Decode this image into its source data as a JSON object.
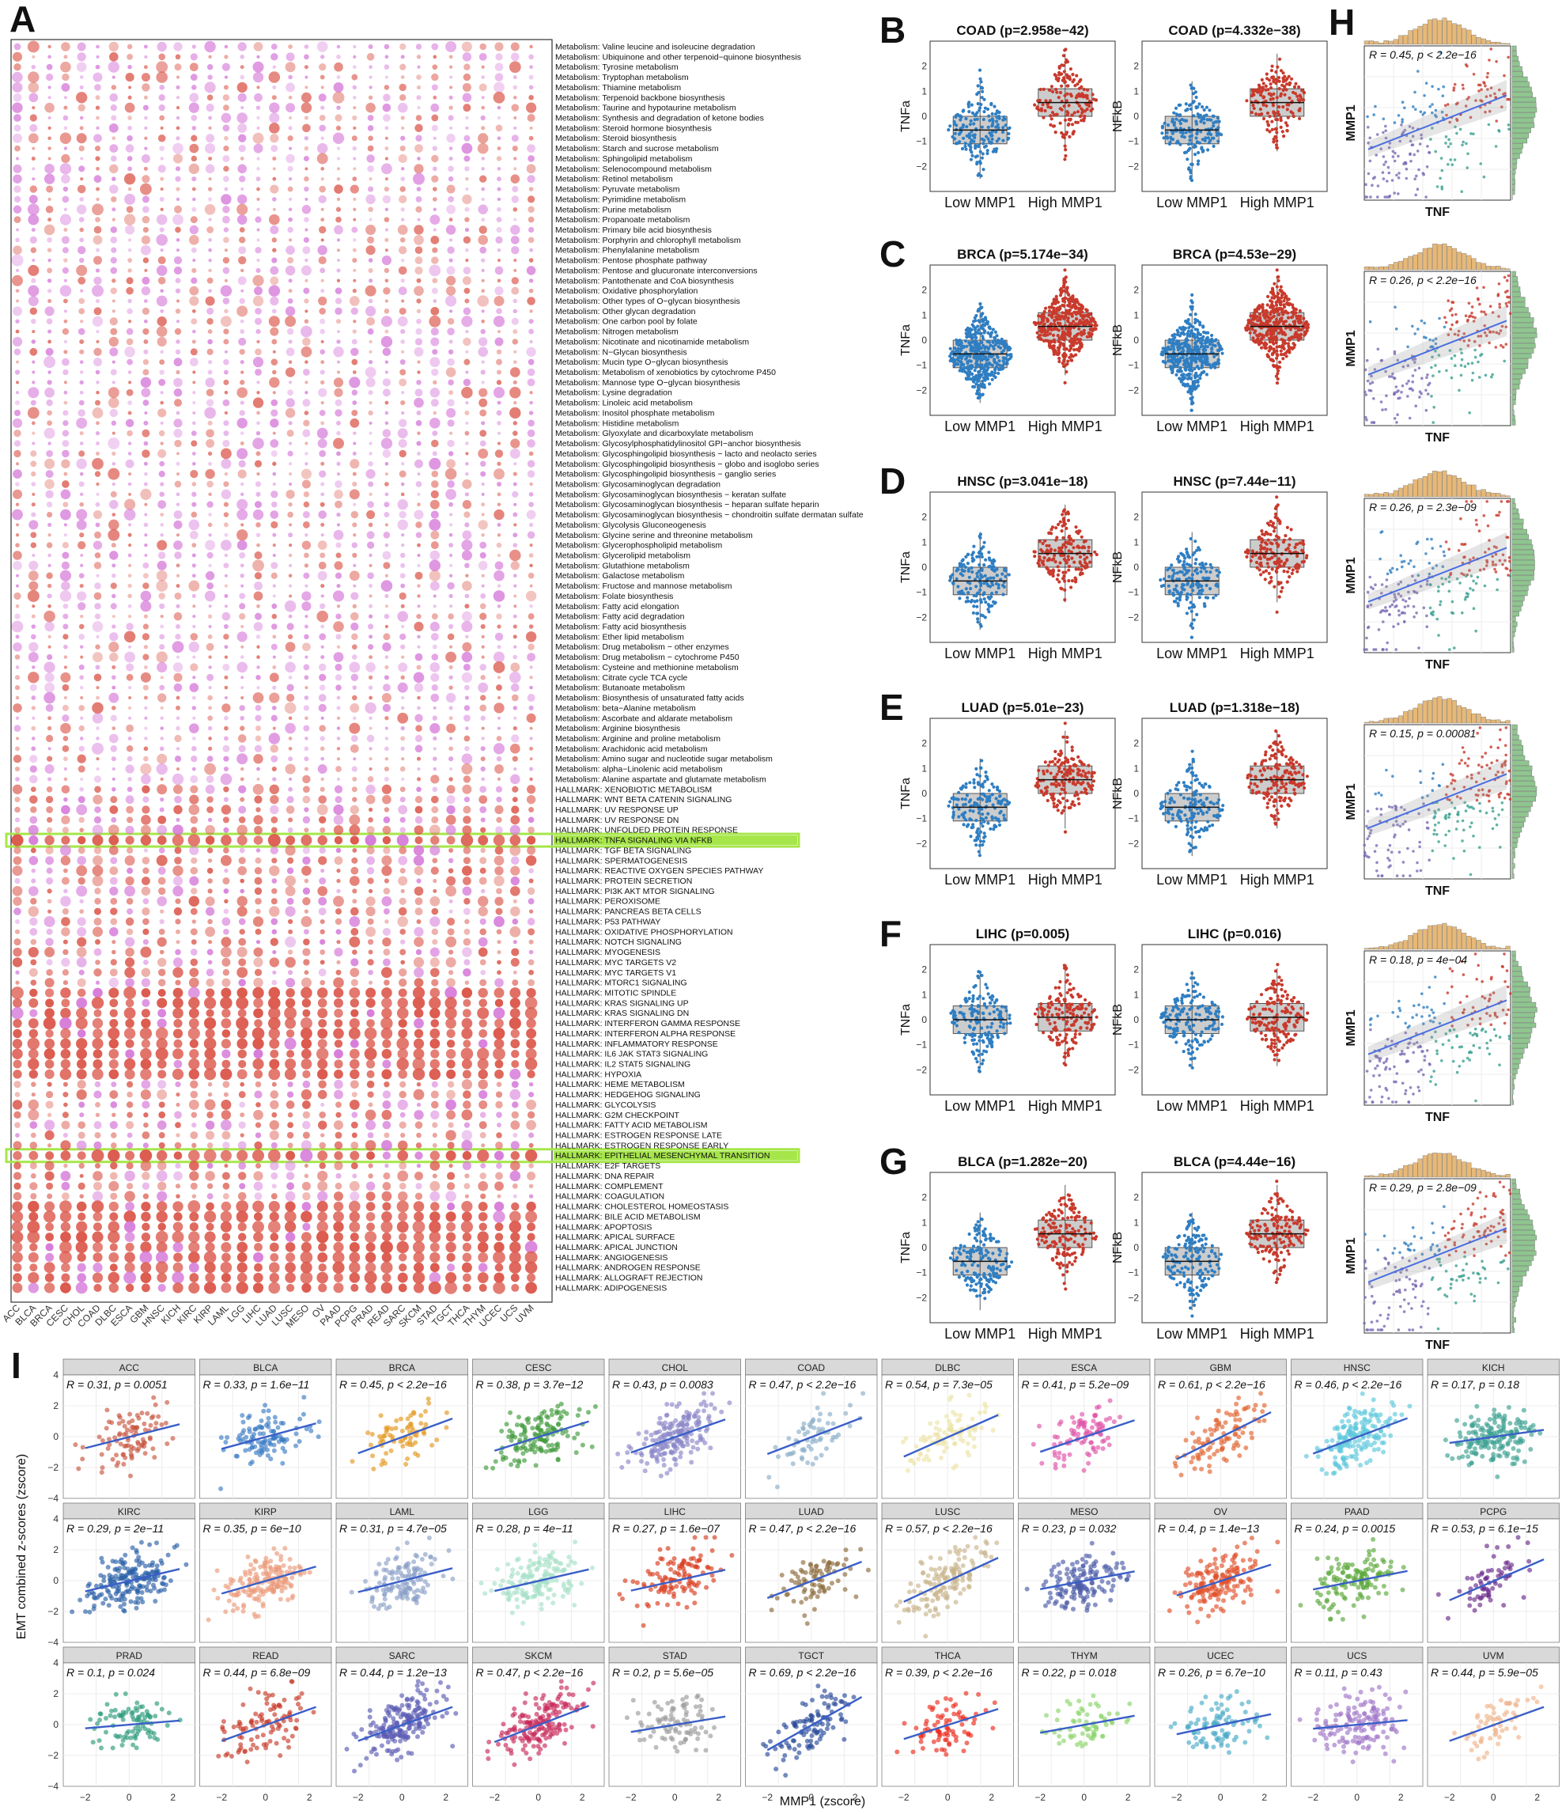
{
  "panel_letters": {
    "A": "A",
    "B": "B",
    "C": "C",
    "D": "D",
    "E": "E",
    "F": "F",
    "G": "G",
    "H": "H",
    "I": "I"
  },
  "panelA": {
    "cancers": [
      "ACC",
      "BLCA",
      "BRCA",
      "CESC",
      "CHOL",
      "COAD",
      "DLBC",
      "ESCA",
      "GBM",
      "HNSC",
      "KICH",
      "KIRC",
      "KIRP",
      "LAML",
      "LGG",
      "LIHC",
      "LUAD",
      "LUSC",
      "MESO",
      "OV",
      "PAAD",
      "PCPG",
      "PRAD",
      "READ",
      "SARC",
      "SKCM",
      "STAD",
      "TGCT",
      "THCA",
      "THYM",
      "UCEC",
      "UCS",
      "UVM"
    ],
    "pathways": [
      "Metabolism: Valine leucine and isoleucine degradation",
      "Metabolism: Ubiquinone and other terpenoid−quinone biosynthesis",
      "Metabolism: Tyrosine metabolism",
      "Metabolism: Tryptophan metabolism",
      "Metabolism: Thiamine metabolism",
      "Metabolism: Terpenoid backbone biosynthesis",
      "Metabolism: Taurine and hypotaurine metabolism",
      "Metabolism: Synthesis and degradation of ketone bodies",
      "Metabolism: Steroid hormone biosynthesis",
      "Metabolism: Steroid biosynthesis",
      "Metabolism: Starch and sucrose metabolism",
      "Metabolism: Sphingolipid metabolism",
      "Metabolism: Selenocompound metabolism",
      "Metabolism: Retinol metabolism",
      "Metabolism: Pyruvate metabolism",
      "Metabolism: Pyrimidine metabolism",
      "Metabolism: Purine metabolism",
      "Metabolism: Propanoate metabolism",
      "Metabolism: Primary bile acid biosynthesis",
      "Metabolism: Porphyrin and chlorophyll metabolism",
      "Metabolism: Phenylalanine metabolism",
      "Metabolism: Pentose phosphate pathway",
      "Metabolism: Pentose and glucuronate interconversions",
      "Metabolism: Pantothenate and CoA biosynthesis",
      "Metabolism: Oxidative phosphorylation",
      "Metabolism: Other types of O−glycan biosynthesis",
      "Metabolism: Other glycan degradation",
      "Metabolism: One carbon pool by folate",
      "Metabolism: Nitrogen metabolism",
      "Metabolism: Nicotinate and nicotinamide metabolism",
      "Metabolism: N−Glycan biosynthesis",
      "Metabolism: Mucin type O−glycan biosynthesis",
      "Metabolism: Metabolism of xenobiotics by cytochrome P450",
      "Metabolism: Mannose type O−glycan biosynthesis",
      "Metabolism: Lysine degradation",
      "Metabolism: Linoleic acid metabolism",
      "Metabolism: Inositol phosphate metabolism",
      "Metabolism: Histidine metabolism",
      "Metabolism: Glyoxylate and dicarboxylate metabolism",
      "Metabolism: Glycosylphosphatidylinositol GPI−anchor biosynthesis",
      "Metabolism: Glycosphingolipid biosynthesis − lacto and neolacto series",
      "Metabolism: Glycosphingolipid biosynthesis − globo and isoglobo series",
      "Metabolism: Glycosphingolipid biosynthesis − ganglio series",
      "Metabolism: Glycosaminoglycan degradation",
      "Metabolism: Glycosaminoglycan biosynthesis − keratan sulfate",
      "Metabolism: Glycosaminoglycan biosynthesis − heparan sulfate heparin",
      "Metabolism: Glycosaminoglycan biosynthesis − chondroitin sulfate dermatan sulfate",
      "Metabolism: Glycolysis Gluconeogenesis",
      "Metabolism: Glycine serine and threonine metabolism",
      "Metabolism: Glycerophospholipid metabolism",
      "Metabolism: Glycerolipid metabolism",
      "Metabolism: Glutathione metabolism",
      "Metabolism: Galactose metabolism",
      "Metabolism: Fructose and mannose metabolism",
      "Metabolism: Folate biosynthesis",
      "Metabolism: Fatty acid elongation",
      "Metabolism: Fatty acid degradation",
      "Metabolism: Fatty acid biosynthesis",
      "Metabolism: Ether lipid metabolism",
      "Metabolism: Drug metabolism − other enzymes",
      "Metabolism: Drug metabolism − cytochrome P450",
      "Metabolism: Cysteine and methionine metabolism",
      "Metabolism: Citrate cycle TCA cycle",
      "Metabolism: Butanoate metabolism",
      "Metabolism: Biosynthesis of unsaturated fatty acids",
      "Metabolism: beta−Alanine metabolism",
      "Metabolism: Ascorbate and aldarate metabolism",
      "Metabolism: Arginine biosynthesis",
      "Metabolism: Arginine and proline metabolism",
      "Metabolism: Arachidonic acid metabolism",
      "Metabolism: Amino sugar and nucleotide sugar metabolism",
      "Metabolism: alpha−Linolenic acid metabolism",
      "Metabolism: Alanine aspartate and glutamate metabolism",
      "HALLMARK: XENOBIOTIC METABOLISM",
      "HALLMARK: WNT BETA CATENIN SIGNALING",
      "HALLMARK: UV RESPONSE UP",
      "HALLMARK: UV RESPONSE DN",
      "HALLMARK: UNFOLDED PROTEIN RESPONSE",
      "HALLMARK: TNFA SIGNALING VIA NFKB",
      "HALLMARK: TGF BETA SIGNALING",
      "HALLMARK: SPERMATOGENESIS",
      "HALLMARK: REACTIVE OXYGEN SPECIES PATHWAY",
      "HALLMARK: PROTEIN SECRETION",
      "HALLMARK: PI3K AKT MTOR SIGNALING",
      "HALLMARK: PEROXISOME",
      "HALLMARK: PANCREAS BETA CELLS",
      "HALLMARK: P53 PATHWAY",
      "HALLMARK: OXIDATIVE PHOSPHORYLATION",
      "HALLMARK: NOTCH SIGNALING",
      "HALLMARK: MYOGENESIS",
      "HALLMARK: MYC TARGETS V2",
      "HALLMARK: MYC TARGETS V1",
      "HALLMARK: MTORC1 SIGNALING",
      "HALLMARK: MITOTIC SPINDLE",
      "HALLMARK: KRAS SIGNALING UP",
      "HALLMARK: KRAS SIGNALING DN",
      "HALLMARK: INTERFERON GAMMA RESPONSE",
      "HALLMARK: INTERFERON ALPHA RESPONSE",
      "HALLMARK: INFLAMMATORY RESPONSE",
      "HALLMARK: IL6 JAK STAT3 SIGNALING",
      "HALLMARK: IL2 STAT5 SIGNALING",
      "HALLMARK: HYPOXIA",
      "HALLMARK: HEME METABOLISM",
      "HALLMARK: HEDGEHOG SIGNALING",
      "HALLMARK: GLYCOLYSIS",
      "HALLMARK: G2M CHECKPOINT",
      "HALLMARK: FATTY ACID METABOLISM",
      "HALLMARK: ESTROGEN RESPONSE LATE",
      "HALLMARK: ESTROGEN RESPONSE EARLY",
      "HALLMARK: EPITHELIAL MESENCHYMAL TRANSITION",
      "HALLMARK: E2F TARGETS",
      "HALLMARK: DNA REPAIR",
      "HALLMARK: COMPLEMENT",
      "HALLMARK: COAGULATION",
      "HALLMARK: CHOLESTEROL HOMEOSTASIS",
      "HALLMARK: BILE ACID METABOLISM",
      "HALLMARK: APOPTOSIS",
      "HALLMARK: APICAL SURFACE",
      "HALLMARK: APICAL JUNCTION",
      "HALLMARK: ANGIOGENESIS",
      "HALLMARK: ANDROGEN RESPONSE",
      "HALLMARK: ALLOGRAFT REJECTION",
      "HALLMARK: ADIPOGENESIS"
    ],
    "highlighted": [
      "HALLMARK: TNFA SIGNALING VIA NFKB",
      "HALLMARK: EPITHELIAL MESENCHYMAL TRANSITION"
    ],
    "colors": {
      "up": "#dc5a4e",
      "down": "#d67ad9",
      "highlight": "#a6e64a"
    }
  },
  "boxplots": {
    "categories": [
      "Low MMP1",
      "High MMP1"
    ],
    "colors": {
      "low": "#2f7ec2",
      "high": "#c83a2c"
    },
    "rows": [
      {
        "letter": "B",
        "left": {
          "title": "COAD (p=2.958e−42)",
          "ylabel": "TNFa"
        },
        "right": {
          "title": "COAD (p=4.332e−38)",
          "ylabel": "NFkB"
        }
      },
      {
        "letter": "C",
        "left": {
          "title": "BRCA (p=5.174e−34)",
          "ylabel": "TNFa"
        },
        "right": {
          "title": "BRCA (p=4.53e−29)",
          "ylabel": "NFkB"
        }
      },
      {
        "letter": "D",
        "left": {
          "title": "HNSC (p=3.041e−18)",
          "ylabel": "TNFa"
        },
        "right": {
          "title": "HNSC (p=7.44e−11)",
          "ylabel": "NFkB"
        }
      },
      {
        "letter": "E",
        "left": {
          "title": "LUAD (p=5.01e−23)",
          "ylabel": "TNFa"
        },
        "right": {
          "title": "LUAD (p=1.318e−18)",
          "ylabel": "NFkB"
        }
      },
      {
        "letter": "F",
        "left": {
          "title": "LIHC (p=0.005)",
          "ylabel": "TNFa"
        },
        "right": {
          "title": "LIHC (p=0.016)",
          "ylabel": "NFkB"
        }
      },
      {
        "letter": "G",
        "left": {
          "title": "BLCA (p=1.282e−20)",
          "ylabel": "TNFa"
        },
        "right": {
          "title": "BLCA (p=4.44e−16)",
          "ylabel": "NFkB"
        }
      }
    ]
  },
  "scatterH": {
    "xlabel": "TNF",
    "ylabel": "MMP1",
    "stats": [
      "R = 0.45, p < 2.2e−16",
      "R = 0.26, p < 2.2e−16",
      "R = 0.26, p = 2.3e−09",
      "R = 0.15, p = 0.00081",
      "R = 0.18, p = 4e−04",
      "R = 0.29, p = 2.8e−09"
    ]
  },
  "panelI": {
    "xlabel": "MMP1 (zscore)",
    "ylabel": "EMT combined z-scores (zscore)",
    "x_ticks": [
      "−2",
      "0",
      "2"
    ],
    "y_ticks": [
      "4",
      "2",
      "0",
      "−2",
      "−4"
    ],
    "facets": [
      {
        "name": "ACC",
        "stat": "R = 0.31, p = 0.0051",
        "color": "#c8553d",
        "r": 0.31
      },
      {
        "name": "BLCA",
        "stat": "R = 0.33, p = 1.6e−11",
        "color": "#3b7dc4",
        "r": 0.33
      },
      {
        "name": "BRCA",
        "stat": "R = 0.45, p < 2.2e−16",
        "color": "#e3961b",
        "r": 0.45
      },
      {
        "name": "CESC",
        "stat": "R = 0.38, p = 3.7e−12",
        "color": "#3f9a3a",
        "r": 0.38
      },
      {
        "name": "CHOL",
        "stat": "R = 0.43, p = 0.0083",
        "color": "#8a86c8",
        "r": 0.43
      },
      {
        "name": "COAD",
        "stat": "R = 0.47, p < 2.2e−16",
        "color": "#8aaec8",
        "r": 0.47
      },
      {
        "name": "DLBC",
        "stat": "R = 0.54, p = 7.3e−05",
        "color": "#ede3a6",
        "r": 0.54
      },
      {
        "name": "ESCA",
        "stat": "R = 0.41, p = 5.2e−09",
        "color": "#e052a8",
        "r": 0.41
      },
      {
        "name": "GBM",
        "stat": "R = 0.61, p < 2.2e−16",
        "color": "#e0622c",
        "r": 0.61
      },
      {
        "name": "HNSC",
        "stat": "R = 0.46, p < 2.2e−16",
        "color": "#5cc8dc",
        "r": 0.46
      },
      {
        "name": "KICH",
        "stat": "R = 0.17, p = 0.18",
        "color": "#3aa090",
        "r": 0.17
      },
      {
        "name": "KIRC",
        "stat": "R = 0.29, p = 2e−11",
        "color": "#2a5fa8",
        "r": 0.29
      },
      {
        "name": "KIRP",
        "stat": "R = 0.35, p = 6e−10",
        "color": "#eb9a7a",
        "r": 0.35
      },
      {
        "name": "LAML",
        "stat": "R = 0.31, p = 4.7e−05",
        "color": "#8aa0c8",
        "r": 0.31
      },
      {
        "name": "LGG",
        "stat": "R = 0.28, p = 4e−11",
        "color": "#a6e0c8",
        "r": 0.28
      },
      {
        "name": "LIHC",
        "stat": "R = 0.27, p = 1.6e−07",
        "color": "#d83a1c",
        "r": 0.27
      },
      {
        "name": "LUAD",
        "stat": "R = 0.47, p < 2.2e−16",
        "color": "#8a6a3a",
        "r": 0.47
      },
      {
        "name": "LUSC",
        "stat": "R = 0.57, p < 2.2e−16",
        "color": "#c8b48a",
        "r": 0.57
      },
      {
        "name": "MESO",
        "stat": "R = 0.23, p = 0.032",
        "color": "#4a5aa8",
        "r": 0.23
      },
      {
        "name": "OV",
        "stat": "R = 0.4, p = 1.4e−13",
        "color": "#e0502a",
        "r": 0.4
      },
      {
        "name": "PAAD",
        "stat": "R = 0.24, p = 0.0015",
        "color": "#5aa83a",
        "r": 0.24
      },
      {
        "name": "PCPG",
        "stat": "R = 0.53, p = 6.1e−15",
        "color": "#6a2a8a",
        "r": 0.53
      },
      {
        "name": "PRAD",
        "stat": "R = 0.1, p = 0.024",
        "color": "#2a9a7a",
        "r": 0.1
      },
      {
        "name": "READ",
        "stat": "R = 0.44, p = 6.8e−09",
        "color": "#c83a2a",
        "r": 0.44
      },
      {
        "name": "SARC",
        "stat": "R = 0.44, p = 1.2e−13",
        "color": "#5a5ab4",
        "r": 0.44
      },
      {
        "name": "SKCM",
        "stat": "R = 0.47, p < 2.2e−16",
        "color": "#c82a5a",
        "r": 0.47
      },
      {
        "name": "STAD",
        "stat": "R = 0.2, p = 5.6e−05",
        "color": "#9a9a9a",
        "r": 0.2
      },
      {
        "name": "TGCT",
        "stat": "R = 0.69, p < 2.2e−16",
        "color": "#2a4a9a",
        "r": 0.69
      },
      {
        "name": "THCA",
        "stat": "R = 0.39, p < 2.2e−16",
        "color": "#ec2a1a",
        "r": 0.39
      },
      {
        "name": "THYM",
        "stat": "R = 0.22, p = 0.018",
        "color": "#8ad46a",
        "r": 0.22
      },
      {
        "name": "UCEC",
        "stat": "R = 0.26, p = 6.7e−10",
        "color": "#4aaac8",
        "r": 0.26
      },
      {
        "name": "UCS",
        "stat": "R = 0.11, p = 0.43",
        "color": "#a074c8",
        "r": 0.11
      },
      {
        "name": "UVM",
        "stat": "R = 0.44, p = 5.9e−05",
        "color": "#f0b48a",
        "r": 0.44
      }
    ]
  }
}
